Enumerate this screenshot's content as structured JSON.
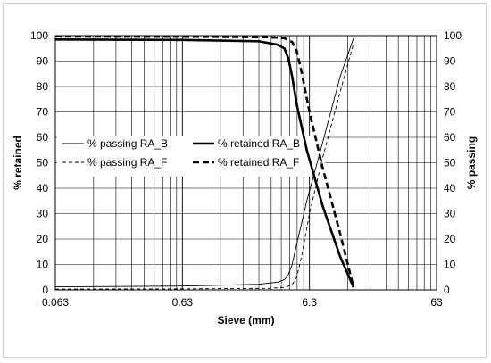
{
  "chart_data": {
    "type": "line",
    "xlabel": "Sieve (mm)",
    "ylabel_left": "% retained",
    "ylabel_right": "% passing",
    "x_scale": "log",
    "xlim": [
      0.063,
      63
    ],
    "ylim": [
      0,
      100
    ],
    "x_ticks": [
      {
        "value": 0.063,
        "label": "0.063"
      },
      {
        "value": 0.63,
        "label": "0.63"
      },
      {
        "value": 6.3,
        "label": "6.3"
      },
      {
        "value": 63,
        "label": "63"
      }
    ],
    "y_ticks_left": [
      "0",
      "10",
      "20",
      "30",
      "40",
      "50",
      "60",
      "70",
      "80",
      "90",
      "100"
    ],
    "y_ticks_right": [
      "0",
      "10",
      "20",
      "30",
      "40",
      "50",
      "60",
      "70",
      "80",
      "90",
      "100"
    ],
    "grid": true,
    "legend_position": "center-left",
    "series": [
      {
        "name": "% passing RA_B",
        "axis": "right",
        "style": "thin-solid",
        "x": [
          0.063,
          0.63,
          2.5,
          3.5,
          4.0,
          4.3,
          4.6,
          5.0,
          6.0,
          8.0,
          11.0,
          14.0
        ],
        "y": [
          1.2,
          1.5,
          2.2,
          3.0,
          4.0,
          6.0,
          10.0,
          18.0,
          35.0,
          58.0,
          84.0,
          99.0
        ]
      },
      {
        "name": "% retained RA_B",
        "axis": "left",
        "style": "thick-solid",
        "x": [
          0.063,
          0.63,
          2.5,
          3.5,
          4.0,
          4.3,
          4.6,
          5.0,
          6.0,
          8.0,
          11.0,
          14.0
        ],
        "y": [
          98.5,
          98.3,
          97.8,
          96.5,
          95.0,
          91.0,
          84.0,
          73.0,
          55.0,
          33.0,
          13.0,
          1.0
        ]
      },
      {
        "name": "% passing RA_F",
        "axis": "right",
        "style": "thin-dashed",
        "x": [
          0.063,
          0.63,
          3.0,
          4.0,
          4.6,
          5.0,
          5.5,
          6.3,
          8.0,
          11.0,
          14.0
        ],
        "y": [
          0.3,
          0.4,
          0.6,
          1.0,
          2.0,
          5.0,
          14.0,
          30.0,
          52.0,
          78.0,
          97.0
        ]
      },
      {
        "name": "% retained RA_F",
        "axis": "left",
        "style": "thick-dashed",
        "x": [
          0.063,
          0.63,
          3.0,
          4.0,
          4.6,
          5.0,
          5.5,
          6.3,
          8.0,
          11.0,
          14.0
        ],
        "y": [
          99.7,
          99.6,
          99.4,
          99.0,
          97.5,
          94.0,
          85.0,
          70.0,
          48.0,
          22.0,
          1.0
        ]
      }
    ]
  }
}
